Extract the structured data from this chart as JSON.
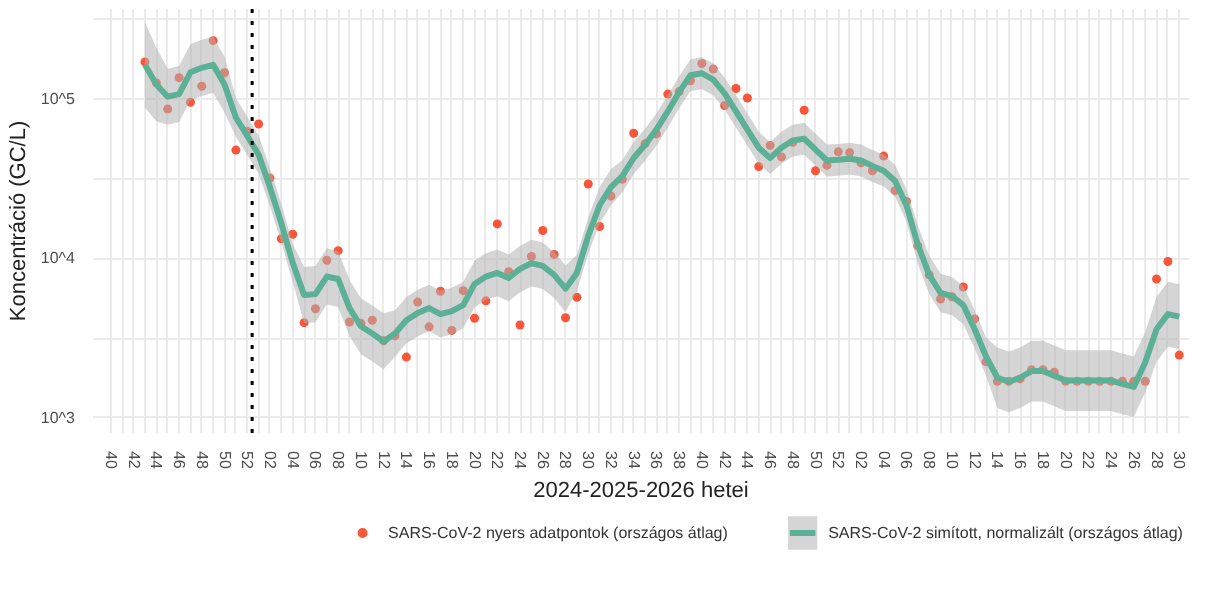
{
  "chart_data": {
    "type": "line",
    "xlabel": "2024-2025-2026 hetei",
    "ylabel": "Koncentráció (GC/L)",
    "log": "y",
    "ylim": [
      800,
      370000
    ],
    "yticks": [
      {
        "value": 1000,
        "label": "10^3"
      },
      {
        "value": 3162,
        "label": null
      },
      {
        "value": 10000,
        "label": "10^4"
      },
      {
        "value": 31623,
        "label": null
      },
      {
        "value": 100000,
        "label": "10^5"
      },
      {
        "value": 316228,
        "label": null
      }
    ],
    "xlim": [
      "2024-09-19",
      "2026-07-26"
    ],
    "xticks": [
      {
        "value": "2024-09-30",
        "label": "40"
      },
      {
        "value": "2024-10-07",
        "label": null
      },
      {
        "value": "2024-10-14",
        "label": "42"
      },
      {
        "value": "2024-10-21",
        "label": null
      },
      {
        "value": "2024-10-28",
        "label": "44"
      },
      {
        "value": "2024-11-04",
        "label": null
      },
      {
        "value": "2024-11-11",
        "label": "46"
      },
      {
        "value": "2024-11-18",
        "label": null
      },
      {
        "value": "2024-11-25",
        "label": "48"
      },
      {
        "value": "2024-12-02",
        "label": null
      },
      {
        "value": "2024-12-09",
        "label": "50"
      },
      {
        "value": "2024-12-16",
        "label": null
      },
      {
        "value": "2024-12-23",
        "label": "52"
      },
      {
        "value": "2024-12-30",
        "label": null
      },
      {
        "value": "2025-01-06",
        "label": "02"
      },
      {
        "value": "2025-01-13",
        "label": null
      },
      {
        "value": "2025-01-20",
        "label": "04"
      },
      {
        "value": "2025-01-27",
        "label": null
      },
      {
        "value": "2025-02-03",
        "label": "06"
      },
      {
        "value": "2025-02-10",
        "label": null
      },
      {
        "value": "2025-02-17",
        "label": "08"
      },
      {
        "value": "2025-02-24",
        "label": null
      },
      {
        "value": "2025-03-03",
        "label": "10"
      },
      {
        "value": "2025-03-10",
        "label": null
      },
      {
        "value": "2025-03-17",
        "label": "12"
      },
      {
        "value": "2025-03-24",
        "label": null
      },
      {
        "value": "2025-03-31",
        "label": "14"
      },
      {
        "value": "2025-04-07",
        "label": null
      },
      {
        "value": "2025-04-14",
        "label": "16"
      },
      {
        "value": "2025-04-21",
        "label": null
      },
      {
        "value": "2025-04-28",
        "label": "18"
      },
      {
        "value": "2025-05-05",
        "label": null
      },
      {
        "value": "2025-05-12",
        "label": "20"
      },
      {
        "value": "2025-05-19",
        "label": null
      },
      {
        "value": "2025-05-26",
        "label": "22"
      },
      {
        "value": "2025-06-02",
        "label": null
      },
      {
        "value": "2025-06-09",
        "label": "24"
      },
      {
        "value": "2025-06-16",
        "label": null
      },
      {
        "value": "2025-06-23",
        "label": "26"
      },
      {
        "value": "2025-06-30",
        "label": null
      },
      {
        "value": "2025-07-07",
        "label": "28"
      },
      {
        "value": "2025-07-14",
        "label": null
      },
      {
        "value": "2025-07-21",
        "label": "30"
      },
      {
        "value": "2025-07-28",
        "label": null
      },
      {
        "value": "2025-08-04",
        "label": "32"
      },
      {
        "value": "2025-08-11",
        "label": null
      },
      {
        "value": "2025-08-18",
        "label": "34"
      },
      {
        "value": "2025-08-25",
        "label": null
      },
      {
        "value": "2025-09-01",
        "label": "36"
      },
      {
        "value": "2025-09-08",
        "label": null
      },
      {
        "value": "2025-09-15",
        "label": "38"
      },
      {
        "value": "2025-09-22",
        "label": null
      },
      {
        "value": "2025-09-29",
        "label": "40"
      },
      {
        "value": "2025-10-06",
        "label": null
      },
      {
        "value": "2025-10-13",
        "label": "42"
      },
      {
        "value": "2025-10-20",
        "label": null
      },
      {
        "value": "2025-10-27",
        "label": "44"
      },
      {
        "value": "2025-11-03",
        "label": null
      },
      {
        "value": "2025-11-10",
        "label": "46"
      },
      {
        "value": "2025-11-17",
        "label": null
      },
      {
        "value": "2025-11-24",
        "label": "48"
      },
      {
        "value": "2025-12-01",
        "label": null
      },
      {
        "value": "2025-12-08",
        "label": "50"
      },
      {
        "value": "2025-12-15",
        "label": null
      },
      {
        "value": "2025-12-22",
        "label": "52"
      },
      {
        "value": "2025-12-29",
        "label": null
      },
      {
        "value": "2026-01-05",
        "label": "02"
      },
      {
        "value": "2026-01-12",
        "label": null
      },
      {
        "value": "2026-01-19",
        "label": "04"
      },
      {
        "value": "2026-01-26",
        "label": null
      },
      {
        "value": "2026-02-02",
        "label": "06"
      },
      {
        "value": "2026-02-09",
        "label": null
      },
      {
        "value": "2026-02-16",
        "label": "08"
      },
      {
        "value": "2026-02-23",
        "label": null
      },
      {
        "value": "2026-03-02",
        "label": "10"
      },
      {
        "value": "2026-03-09",
        "label": null
      },
      {
        "value": "2026-03-16",
        "label": "12"
      },
      {
        "value": "2026-03-23",
        "label": null
      },
      {
        "value": "2026-03-30",
        "label": "14"
      },
      {
        "value": "2026-04-06",
        "label": null
      },
      {
        "value": "2026-04-13",
        "label": "16"
      },
      {
        "value": "2026-04-20",
        "label": null
      },
      {
        "value": "2026-04-27",
        "label": "18"
      },
      {
        "value": "2026-05-04",
        "label": null
      },
      {
        "value": "2026-05-11",
        "label": "20"
      },
      {
        "value": "2026-05-18",
        "label": null
      },
      {
        "value": "2026-05-25",
        "label": "22"
      },
      {
        "value": "2026-06-01",
        "label": null
      },
      {
        "value": "2026-06-08",
        "label": "24"
      },
      {
        "value": "2026-06-15",
        "label": null
      },
      {
        "value": "2026-06-22",
        "label": "26"
      },
      {
        "value": "2026-06-29",
        "label": null
      },
      {
        "value": "2026-07-06",
        "label": "28"
      },
      {
        "value": "2026-07-13",
        "label": null
      },
      {
        "value": "2026-07-20",
        "label": "30"
      }
    ],
    "x": [
      "2024-10-21",
      "2024-10-28",
      "2024-11-04",
      "2024-11-11",
      "2024-11-18",
      "2024-11-25",
      "2024-12-02",
      "2024-12-09",
      "2024-12-16",
      "2024-12-23",
      "2024-12-30",
      "2025-01-06",
      "2025-01-13",
      "2025-01-20",
      "2025-01-27",
      "2025-02-03",
      "2025-02-10",
      "2025-02-17",
      "2025-02-24",
      "2025-03-03",
      "2025-03-10",
      "2025-03-17",
      "2025-03-24",
      "2025-03-31",
      "2025-04-07",
      "2025-04-14",
      "2025-04-21",
      "2025-04-28",
      "2025-05-05",
      "2025-05-12",
      "2025-05-19",
      "2025-05-26",
      "2025-06-02",
      "2025-06-09",
      "2025-06-16",
      "2025-06-23",
      "2025-06-30",
      "2025-07-07",
      "2025-07-14",
      "2025-07-21",
      "2025-07-28",
      "2025-08-04",
      "2025-08-11",
      "2025-08-18",
      "2025-08-25",
      "2025-09-01",
      "2025-09-08",
      "2025-09-15",
      "2025-09-22",
      "2025-09-29",
      "2025-10-06",
      "2025-10-13",
      "2025-10-20",
      "2025-10-27",
      "2025-11-03",
      "2025-11-10",
      "2025-11-17",
      "2025-11-24",
      "2025-12-01",
      "2025-12-08",
      "2025-12-15",
      "2025-12-22",
      "2025-12-29",
      "2026-01-05",
      "2026-01-12",
      "2026-01-19",
      "2026-01-26",
      "2026-02-02",
      "2026-02-09",
      "2026-02-16",
      "2026-02-23",
      "2026-03-02",
      "2026-03-09",
      "2026-03-16",
      "2026-03-23",
      "2026-03-30",
      "2026-04-06",
      "2026-04-13",
      "2026-04-20",
      "2026-04-27",
      "2026-05-04",
      "2026-05-11",
      "2026-05-18",
      "2026-05-25",
      "2026-06-01",
      "2026-06-08",
      "2026-06-15",
      "2026-06-22",
      "2026-06-29",
      "2026-07-06",
      "2026-07-13",
      "2026-07-20"
    ],
    "grid": true,
    "legend": "bottom",
    "ref_lines": [
      {
        "axis": "x",
        "value": "2024-12-26",
        "color": "#000000",
        "line_style": "dotted"
      }
    ],
    "series": [
      {
        "name": "SARS-CoV-2 nyers adatpontok (országos átlag)",
        "type": "scatter",
        "marker": "circle",
        "color": "#f8553a",
        "values": [
          172000,
          127000,
          87000,
          137000,
          96000,
          121000,
          234000,
          147000,
          48000,
          63000,
          70000,
          32000,
          13300,
          14200,
          3950,
          4830,
          9750,
          11200,
          3990,
          3920,
          4090,
          3040,
          3260,
          2400,
          5320,
          3720,
          6220,
          3530,
          6280,
          4210,
          5420,
          16500,
          8250,
          3820,
          10300,
          15000,
          10600,
          4240,
          5710,
          29400,
          15900,
          24700,
          31500,
          61300,
          52700,
          60700,
          108000,
          112000,
          131000,
          168000,
          155000,
          91600,
          117000,
          102000,
          37800,
          51400,
          43500,
          53700,
          85500,
          35600,
          38500,
          46800,
          46300,
          39900,
          35600,
          44000,
          26700,
          22800,
          12000,
          7890,
          5560,
          5750,
          6620,
          4170,
          2240,
          1690,
          1690,
          1750,
          2000,
          2000,
          1930,
          1690,
          1690,
          1690,
          1690,
          1690,
          1690,
          1690,
          1690,
          7430,
          9570,
          2470
        ]
      },
      {
        "name": "SARS-CoV-2 simított, normalizált (országos átlag)",
        "line_style": "solid",
        "color": "#5bb096",
        "values": [
          165000,
          124000,
          104000,
          108000,
          148000,
          158000,
          165000,
          124000,
          77000,
          59000,
          45000,
          28000,
          16600,
          9400,
          5900,
          5970,
          7700,
          7430,
          4880,
          3750,
          3380,
          3010,
          3380,
          4090,
          4550,
          4880,
          4470,
          4670,
          5090,
          6920,
          7700,
          8110,
          7550,
          8600,
          9330,
          8990,
          7890,
          6460,
          8110,
          13900,
          21600,
          28100,
          32900,
          42800,
          51900,
          64600,
          84000,
          111000,
          142000,
          146000,
          133000,
          109000,
          84000,
          64600,
          49700,
          42800,
          49700,
          55100,
          56600,
          48300,
          41300,
          41700,
          42400,
          41300,
          38200,
          35600,
          30700,
          21600,
          12200,
          7890,
          6070,
          5800,
          5090,
          3590,
          2420,
          1780,
          1680,
          1780,
          1960,
          1960,
          1830,
          1710,
          1710,
          1710,
          1710,
          1710,
          1630,
          1560,
          2220,
          3590,
          4470,
          4310
        ],
        "upper": [
          307000,
          211000,
          156000,
          162000,
          222000,
          237000,
          248000,
          186000,
          102000,
          77900,
          59400,
          37000,
          21900,
          12400,
          8850,
          8960,
          11600,
          11100,
          7320,
          5630,
          5070,
          4520,
          4730,
          5730,
          6370,
          6830,
          6260,
          6540,
          7130,
          9690,
          10800,
          11400,
          10600,
          12000,
          13100,
          12600,
          11000,
          9040,
          10500,
          18100,
          28100,
          36500,
          41500,
          53900,
          65400,
          81400,
          106000,
          140000,
          179000,
          184000,
          168000,
          137000,
          106000,
          81400,
          62600,
          53900,
          62600,
          69400,
          71300,
          60900,
          52000,
          52500,
          53400,
          52000,
          48100,
          44900,
          38700,
          27200,
          16100,
          10400,
          8010,
          7660,
          6720,
          4740,
          3190,
          2760,
          2600,
          2760,
          3040,
          3040,
          2840,
          2650,
          2650,
          2650,
          2650,
          2650,
          2530,
          2420,
          3440,
          5740,
          7150,
          6900
        ],
        "lower": [
          88700,
          72900,
          69300,
          72000,
          98700,
          105000,
          110000,
          82700,
          58300,
          44700,
          34100,
          21200,
          12600,
          7120,
          3930,
          3980,
          5130,
          4950,
          3250,
          2500,
          2250,
          2010,
          2410,
          2920,
          3250,
          3490,
          3190,
          3340,
          3640,
          4940,
          5500,
          5790,
          5390,
          6140,
          6660,
          6420,
          5640,
          4610,
          6240,
          10700,
          16600,
          21600,
          26100,
          34000,
          41200,
          51300,
          66700,
          88100,
          113000,
          116000,
          106000,
          86500,
          66700,
          51300,
          39400,
          34000,
          39400,
          43700,
          44900,
          38300,
          32800,
          33100,
          33700,
          32800,
          30300,
          28300,
          24400,
          17100,
          9240,
          5980,
          4600,
          4390,
          3860,
          2720,
          1830,
          1150,
          1080,
          1150,
          1260,
          1260,
          1180,
          1100,
          1100,
          1100,
          1100,
          1100,
          1050,
          1010,
          1430,
          2240,
          2790,
          2690
        ]
      }
    ]
  }
}
